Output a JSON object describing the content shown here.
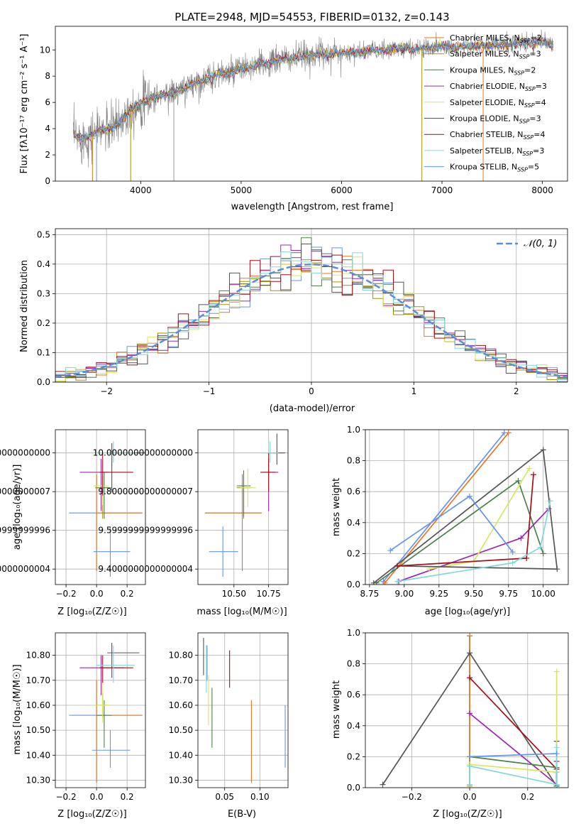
{
  "colors": [
    "#6495ED",
    "#E87722",
    "#A89000",
    "#4E7F4E",
    "#9B27B0",
    "#D8E65A",
    "#555555",
    "#A30F15",
    "#80D8DC"
  ],
  "chart_data": [
    {
      "id": "spectrum",
      "type": "line",
      "title": "PLATE=2948, MJD=54553, FIBERID=0132, z=0.143",
      "xlabel": "wavelength [Angstrom, rest frame]",
      "ylabel": "Flux [fλ10⁻¹⁷ erg cm⁻² s⁻¹ A⁻¹]",
      "xlim": [
        3150,
        8250
      ],
      "ylim": [
        0,
        11.8
      ],
      "xticks": [
        4000,
        5000,
        6000,
        7000,
        8000
      ],
      "yticks": [
        0,
        2,
        4,
        6,
        8,
        10
      ],
      "legend_position": "top-right",
      "data_color": "#808080",
      "data_line": {
        "x": [
          3330,
          3400,
          3500,
          3600,
          3700,
          3800,
          3900,
          4000,
          4100,
          4200,
          4300,
          4400,
          4500,
          4600,
          4700,
          4800,
          4900,
          5000,
          5100,
          5200,
          5300,
          5400,
          5500,
          5600,
          5700,
          5800,
          5900,
          6000,
          6100,
          6200,
          6300,
          6400,
          6500,
          6600,
          6700,
          6800,
          6900,
          7000,
          7100,
          7200,
          7300,
          7400,
          7500,
          7600,
          7700,
          7800,
          7900,
          8000,
          8100
        ],
        "y": [
          3.5,
          3.2,
          3.5,
          3.9,
          4.0,
          4.6,
          5.5,
          5.9,
          6.3,
          6.6,
          6.7,
          6.9,
          7.4,
          7.6,
          7.9,
          8.2,
          8.2,
          8.6,
          8.6,
          8.9,
          9.0,
          9.3,
          9.3,
          9.5,
          9.6,
          9.7,
          9.7,
          9.8,
          9.8,
          9.8,
          10.0,
          9.9,
          10.1,
          10.1,
          10.1,
          10.1,
          10.2,
          10.3,
          10.2,
          10.3,
          10.3,
          10.3,
          10.3,
          10.4,
          10.4,
          10.6,
          10.5,
          10.7,
          10.3
        ]
      },
      "series": [
        {
          "name": "Chabrier MILES, N_SSP=2"
        },
        {
          "name": "Salpeter MILES, N_SSP=3"
        },
        {
          "name": "Kroupa MILES, N_SSP=2"
        },
        {
          "name": "Chabrier ELODIE, N_SSP=3"
        },
        {
          "name": "Salpeter ELODIE, N_SSP=4"
        },
        {
          "name": "Kroupa ELODIE, N_SSP=3"
        },
        {
          "name": "Chabrier STELIB, N_SSP=4"
        },
        {
          "name": "Salpeter STELIB, N_SSP=3"
        },
        {
          "name": "Kroupa STELIB, N_SSP=5"
        }
      ]
    },
    {
      "id": "residuals",
      "type": "histogram",
      "xlabel": "(data-model)/error",
      "ylabel": "Normed distribution",
      "xlim": [
        -2.5,
        2.5
      ],
      "ylim": [
        0,
        0.52
      ],
      "xticks": [
        -2,
        -1,
        0,
        1,
        2
      ],
      "yticks": [
        0,
        0.1,
        0.2,
        0.3,
        0.4,
        0.5
      ],
      "grid": true,
      "bin_width": 0.1,
      "bin_start": -2.5,
      "reference_label": "𝒩(0, 1)",
      "reference_color": "#5B8DD6",
      "legend_position": "top-right"
    },
    {
      "id": "age-vs-Z",
      "type": "errorbar",
      "xlabel": "Z [log₁₀(Z/Z☉)]",
      "ylabel": "age  [log₁₀(age/yr)]",
      "xlim": [
        -0.27,
        0.32
      ],
      "ylim": [
        9.32,
        10.12
      ],
      "xticks": [
        -0.2,
        0.0,
        0.2
      ],
      "yticks": [
        9.4,
        9.6,
        9.8,
        10.0
      ],
      "grid": true,
      "points": [
        {
          "x": 0.0,
          "y": 9.69,
          "xerr": [
            0.18,
            0.3
          ],
          "yerr": [
            0.3,
            0.2
          ],
          "c": 0
        },
        {
          "x": 0.0,
          "y": 9.69,
          "xerr": [
            0.0,
            0.3
          ],
          "yerr": [
            0.3,
            0.2
          ],
          "c": 1
        },
        {
          "x": 0.04,
          "y": 9.82,
          "xerr": [
            0.05,
            0.04
          ],
          "yerr": [
            0.16,
            0.06
          ],
          "c": 2
        },
        {
          "x": 0.05,
          "y": 9.82,
          "xerr": [
            0.05,
            0.05
          ],
          "yerr": [
            0.16,
            0.08
          ],
          "c": 3
        },
        {
          "x": 0.03,
          "y": 9.9,
          "xerr": [
            0.14,
            0.05
          ],
          "yerr": [
            0.2,
            0.07
          ],
          "c": 4
        },
        {
          "x": 0.04,
          "y": 9.83,
          "xerr": [
            0.06,
            0.04
          ],
          "yerr": [
            0.1,
            0.05
          ],
          "c": 5
        },
        {
          "x": 0.1,
          "y": 10.0,
          "xerr": [
            0.03,
            0.3
          ],
          "yerr": [
            0.2,
            0.05
          ],
          "c": 6
        },
        {
          "x": 0.04,
          "y": 9.9,
          "xerr": [
            0.02,
            0.2
          ],
          "yerr": [
            0.12,
            0.1
          ],
          "c": 7
        },
        {
          "x": 0.11,
          "y": 10.0,
          "xerr": [
            0.11,
            0.14
          ],
          "yerr": [
            0.05,
            0.06
          ],
          "c": 8
        },
        {
          "x": 0.09,
          "y": 9.49,
          "xerr": [
            0.11,
            0.13
          ],
          "yerr": [
            0.13,
            0.13
          ],
          "c": 9
        }
      ]
    },
    {
      "id": "age-vs-mass",
      "type": "errorbar",
      "xlabel": "mass [log₁₀(M/M☉)]",
      "ylabel": "",
      "xlim": [
        10.24,
        10.89
      ],
      "ylim": [
        9.32,
        10.12
      ],
      "xticks": [
        10.5,
        10.75
      ],
      "yticks": [
        9.4,
        9.6,
        9.8,
        10.0
      ],
      "grid": true,
      "points": [
        {
          "x": 10.56,
          "y": 9.69,
          "xerr": [
            0.27,
            0.14
          ],
          "yerr": [
            0.3,
            0.2
          ],
          "c": 0
        },
        {
          "x": 10.56,
          "y": 9.69,
          "xerr": [
            0.27,
            0.14
          ],
          "yerr": [
            0.3,
            0.2
          ],
          "c": 1
        },
        {
          "x": 10.57,
          "y": 9.82,
          "xerr": [
            0.05,
            0.05
          ],
          "yerr": [
            0.16,
            0.06
          ],
          "c": 2
        },
        {
          "x": 10.57,
          "y": 9.83,
          "xerr": [
            0.05,
            0.05
          ],
          "yerr": [
            0.16,
            0.08
          ],
          "c": 3
        },
        {
          "x": 10.75,
          "y": 9.9,
          "xerr": [
            0.04,
            0.07
          ],
          "yerr": [
            0.2,
            0.07
          ],
          "c": 4
        },
        {
          "x": 10.6,
          "y": 9.82,
          "xerr": [
            0.05,
            0.06
          ],
          "yerr": [
            0.1,
            0.1
          ],
          "c": 5
        },
        {
          "x": 10.81,
          "y": 10.0,
          "xerr": [
            0.06,
            0.06
          ],
          "yerr": [
            0.06,
            0.1
          ],
          "c": 6
        },
        {
          "x": 10.75,
          "y": 9.9,
          "xerr": [
            0.06,
            0.05
          ],
          "yerr": [
            0.1,
            0.1
          ],
          "c": 7
        },
        {
          "x": 10.76,
          "y": 10.0,
          "xerr": [
            0.06,
            0.06
          ],
          "yerr": [
            0.05,
            0.06
          ],
          "c": 8
        },
        {
          "x": 10.42,
          "y": 9.49,
          "xerr": [
            0.1,
            0.11
          ],
          "yerr": [
            0.13,
            0.13
          ],
          "c": 9
        }
      ]
    },
    {
      "id": "weight-vs-age",
      "type": "line",
      "xlabel": "age  [log₁₀(age/yr)]",
      "ylabel": "mass weight",
      "xlim": [
        8.72,
        10.18
      ],
      "ylim": [
        0,
        1.0
      ],
      "xticks": [
        8.75,
        9.0,
        9.25,
        9.5,
        9.75,
        10.0
      ],
      "yticks": [
        0.0,
        0.2,
        0.4,
        0.6,
        0.8,
        1.0
      ],
      "grid": true,
      "lines": [
        {
          "c": 0,
          "x": [
            8.85,
            9.72
          ],
          "y": [
            0.02,
            0.98
          ]
        },
        {
          "c": 1,
          "x": [
            8.86,
            9.75
          ],
          "y": [
            0.01,
            0.98
          ]
        },
        {
          "c": 3,
          "x": [
            8.8,
            9.82,
            10.0
          ],
          "y": [
            0.01,
            0.67,
            0.2
          ]
        },
        {
          "c": 4,
          "x": [
            8.96,
            9.84,
            10.04
          ],
          "y": [
            0.02,
            0.3,
            0.49
          ]
        },
        {
          "c": 5,
          "x": [
            9.18,
            9.5,
            9.9
          ],
          "y": [
            0.1,
            0.15,
            0.75
          ]
        },
        {
          "c": 6,
          "x": [
            8.78,
            10.0,
            10.1,
            8.95
          ],
          "y": [
            0.01,
            0.87,
            0.1,
            0.12
          ]
        },
        {
          "c": 7,
          "x": [
            8.95,
            9.88,
            9.93
          ],
          "y": [
            0.12,
            0.17,
            0.71
          ]
        },
        {
          "c": 8,
          "x": [
            8.95,
            9.78,
            9.98,
            10.05
          ],
          "y": [
            0.02,
            0.14,
            0.24,
            0.54
          ]
        },
        {
          "c": 9,
          "x": [
            8.9,
            9.47,
            9.78
          ],
          "y": [
            0.22,
            0.57,
            0.21
          ]
        }
      ]
    },
    {
      "id": "mass-vs-Z",
      "type": "errorbar",
      "xlabel": "Z [log₁₀(Z/Z☉)]",
      "ylabel": "mass [log₁₀(M/M☉)]",
      "xlim": [
        -0.27,
        0.32
      ],
      "ylim": [
        10.27,
        10.89
      ],
      "xticks": [
        -0.2,
        0.0,
        0.2
      ],
      "yticks": [
        10.3,
        10.4,
        10.5,
        10.6,
        10.7,
        10.8
      ],
      "grid": true,
      "points": [
        {
          "x": 0.0,
          "y": 10.56,
          "xerr": [
            0.18,
            0.3
          ],
          "yerr": [
            0.27,
            0.14
          ],
          "c": 0
        },
        {
          "x": 0.0,
          "y": 10.56,
          "xerr": [
            0.0,
            0.3
          ],
          "yerr": [
            0.27,
            0.14
          ],
          "c": 1
        },
        {
          "x": 0.04,
          "y": 10.6,
          "xerr": [
            0.05,
            0.04
          ],
          "yerr": [
            0.05,
            0.05
          ],
          "c": 2
        },
        {
          "x": 0.05,
          "y": 10.56,
          "xerr": [
            0.05,
            0.05
          ],
          "yerr": [
            0.13,
            0.06
          ],
          "c": 3
        },
        {
          "x": 0.03,
          "y": 10.75,
          "xerr": [
            0.14,
            0.15
          ],
          "yerr": [
            0.11,
            0.05
          ],
          "c": 4
        },
        {
          "x": 0.04,
          "y": 10.6,
          "xerr": [
            0.06,
            0.05
          ],
          "yerr": [
            0.07,
            0.1
          ],
          "c": 5
        },
        {
          "x": 0.1,
          "y": 10.81,
          "xerr": [
            0.03,
            0.18
          ],
          "yerr": [
            0.1,
            0.04
          ],
          "c": 6
        },
        {
          "x": 0.04,
          "y": 10.75,
          "xerr": [
            0.02,
            0.2
          ],
          "yerr": [
            0.06,
            0.05
          ],
          "c": 7
        },
        {
          "x": 0.11,
          "y": 10.76,
          "xerr": [
            0.11,
            0.14
          ],
          "yerr": [
            0.07,
            0.08
          ],
          "c": 8
        },
        {
          "x": 0.09,
          "y": 10.42,
          "xerr": [
            0.12,
            0.13
          ],
          "yerr": [
            0.07,
            0.08
          ],
          "c": 9
        }
      ]
    },
    {
      "id": "mass-vs-ebv",
      "type": "errorbar",
      "xlabel": "E(B-V)",
      "ylabel": "",
      "xlim": [
        0.012,
        0.14
      ],
      "ylim": [
        10.27,
        10.89
      ],
      "xticks": [
        0.05,
        0.1
      ],
      "yticks": [
        10.3,
        10.4,
        10.5,
        10.6,
        10.7,
        10.8
      ],
      "grid": true,
      "points": [
        {
          "x": 0.025,
          "y": 10.76,
          "xerr": [
            0,
            0
          ],
          "yerr": [
            0.06,
            0.08
          ],
          "c": 0
        },
        {
          "x": 0.088,
          "y": 10.56,
          "xerr": [
            0,
            0
          ],
          "yerr": [
            0.27,
            0.06
          ],
          "c": 1
        },
        {
          "x": 0.027,
          "y": 10.58,
          "xerr": [
            0,
            0
          ],
          "yerr": [
            0.06,
            0.14
          ],
          "c": 5
        },
        {
          "x": 0.032,
          "y": 10.53,
          "xerr": [
            0,
            0
          ],
          "yerr": [
            0.1,
            0.14
          ],
          "c": 3
        },
        {
          "x": 0.02,
          "y": 10.79,
          "xerr": [
            0,
            0
          ],
          "yerr": [
            0.07,
            0.08
          ],
          "c": 6
        },
        {
          "x": 0.057,
          "y": 10.74,
          "xerr": [
            0,
            0
          ],
          "yerr": [
            0.07,
            0.08
          ],
          "c": 7
        },
        {
          "x": 0.024,
          "y": 10.72,
          "xerr": [
            0,
            0
          ],
          "yerr": [
            0.07,
            0.12
          ],
          "c": 8
        },
        {
          "x": 0.136,
          "y": 10.48,
          "xerr": [
            0,
            0
          ],
          "yerr": [
            0.13,
            0.12
          ],
          "c": 9
        }
      ]
    },
    {
      "id": "weight-vs-Z",
      "type": "line",
      "xlabel": "Z [log₁₀(Z/Z☉)]",
      "ylabel": "mass weight",
      "xlim": [
        -0.36,
        0.34
      ],
      "ylim": [
        0,
        1.0
      ],
      "xticks": [
        -0.2,
        0.0,
        0.2
      ],
      "yticks": [
        0.0,
        0.2,
        0.4,
        0.6,
        0.8,
        1.0
      ],
      "grid": true,
      "lines": [
        {
          "c": 0,
          "x": [
            0.0,
            0.0
          ],
          "y": [
            0.02,
            0.98
          ]
        },
        {
          "c": 1,
          "x": [
            0.0,
            0.0
          ],
          "y": [
            0.01,
            0.98
          ]
        },
        {
          "c": 6,
          "x": [
            -0.3,
            0.0,
            0.3,
            0.3
          ],
          "y": [
            0.02,
            0.87,
            0.01,
            0.1
          ]
        },
        {
          "c": 7,
          "x": [
            0.0,
            0.3,
            0.3
          ],
          "y": [
            0.71,
            0.12,
            0.17
          ]
        },
        {
          "c": 4,
          "x": [
            0.0,
            0.3,
            0.3
          ],
          "y": [
            0.48,
            0.02,
            0.3
          ]
        },
        {
          "c": 3,
          "x": [
            0.0,
            0.3,
            0.3
          ],
          "y": [
            0.2,
            0.13,
            0.01
          ]
        },
        {
          "c": 5,
          "x": [
            0.0,
            0.3,
            0.3
          ],
          "y": [
            0.15,
            0.1,
            0.75
          ]
        },
        {
          "c": 8,
          "x": [
            0.0,
            0.0,
            0.3,
            0.3
          ],
          "y": [
            0.02,
            0.14,
            0.02,
            0.26
          ]
        },
        {
          "c": 9,
          "x": [
            0.0,
            0.3
          ],
          "y": [
            0.2,
            0.22
          ]
        }
      ]
    }
  ]
}
